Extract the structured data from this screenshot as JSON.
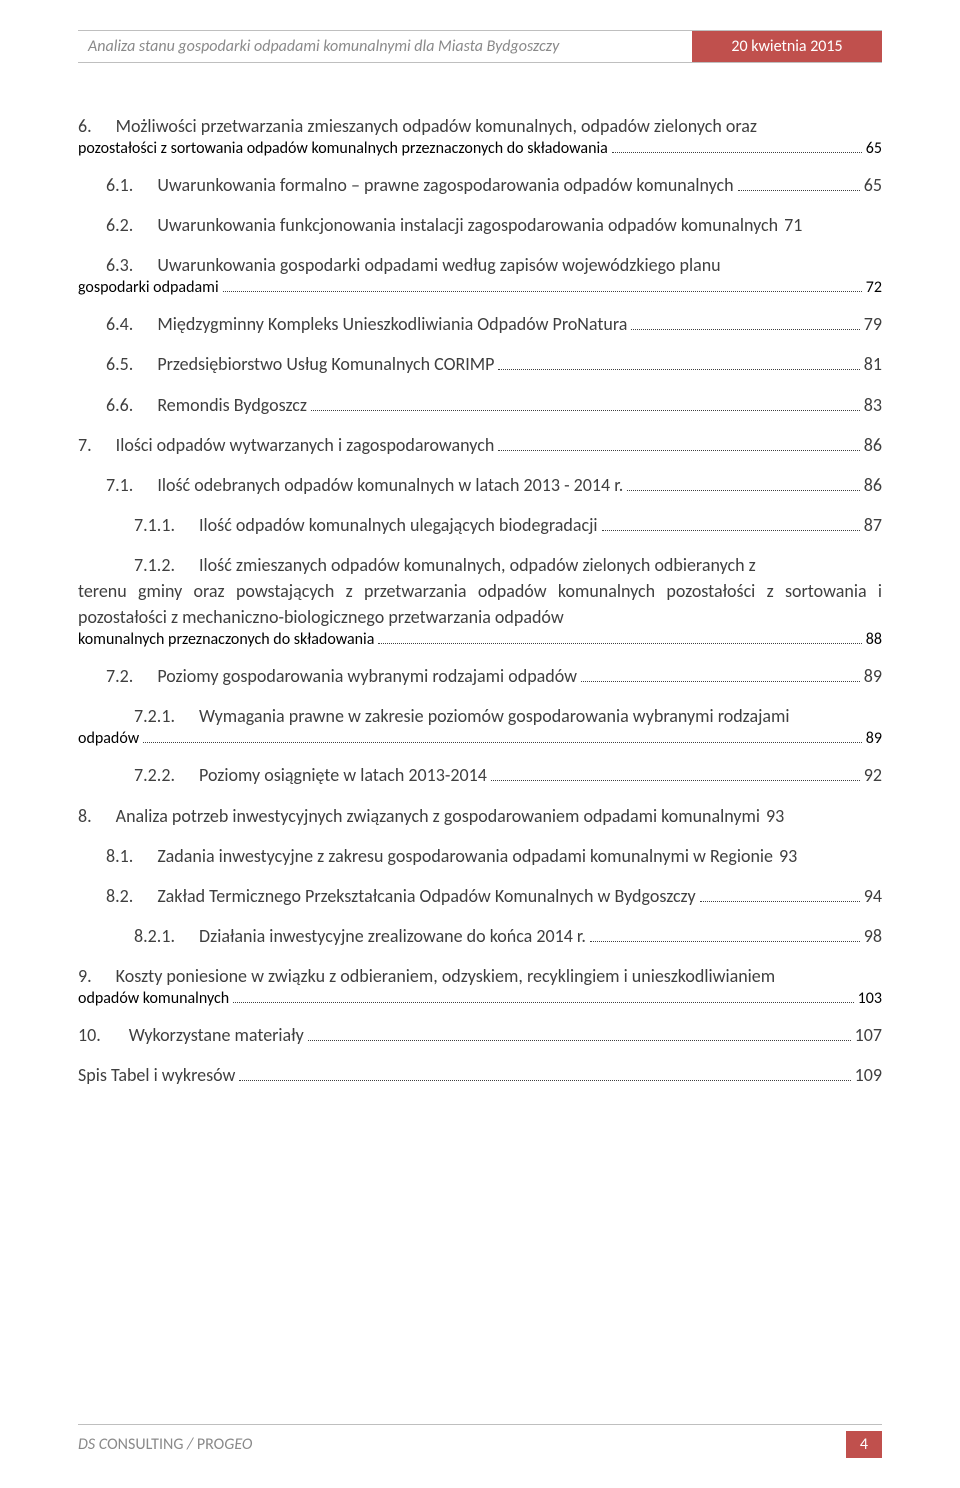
{
  "header": {
    "title": "Analiza stanu gospodarki odpadami komunalnymi dla Miasta Bydgoszczy",
    "date": "20 kwietnia 2015"
  },
  "toc": [
    {
      "num": "6.",
      "text_a": "Możliwości przetwarzania zmieszanych odpadów komunalnych, odpadów zielonych oraz",
      "text_b": "pozostałości z sortowania odpadów komunalnych przeznaczonych do składowania",
      "page": "65",
      "indent": 0,
      "wrap": true
    },
    {
      "num": "6.1.",
      "text_b": "Uwarunkowania formalno – prawne zagospodarowania odpadów komunalnych",
      "page": "65",
      "indent": 1,
      "wrap": false
    },
    {
      "num": "6.2.",
      "text_b": "Uwarunkowania funkcjonowania instalacji zagospodarowania odpadów komunalnych",
      "page": "71",
      "indent": 1,
      "wrap": false,
      "nodots": true
    },
    {
      "num": "6.3.",
      "text_a": "Uwarunkowania gospodarki odpadami według zapisów wojewódzkiego planu",
      "text_b": "gospodarki odpadami",
      "page": "72",
      "indent": 1,
      "wrap": true,
      "justify": true
    },
    {
      "num": "6.4.",
      "text_b": "Międzygminny Kompleks Unieszkodliwiania Odpadów ProNatura",
      "page": "79",
      "indent": 1,
      "wrap": false
    },
    {
      "num": "6.5.",
      "text_b": "Przedsiębiorstwo Usług Komunalnych CORIMP",
      "page": "81",
      "indent": 1,
      "wrap": false
    },
    {
      "num": "6.6.",
      "text_b": "Remondis Bydgoszcz",
      "page": "83",
      "indent": 1,
      "wrap": false
    },
    {
      "num": "7.",
      "text_b": "Ilości odpadów wytwarzanych i zagospodarowanych",
      "page": "86",
      "indent": 0,
      "wrap": false
    },
    {
      "num": "7.1.",
      "text_b": "Ilość odebranych odpadów komunalnych w latach 2013 - 2014 r.",
      "page": "86",
      "indent": 1,
      "wrap": false
    },
    {
      "num": "7.1.1.",
      "text_b": "Ilość odpadów komunalnych ulegających biodegradacji",
      "page": "87",
      "indent": 2,
      "wrap": false
    },
    {
      "num": "7.1.2.",
      "text_a": "Ilość zmieszanych odpadów komunalnych, odpadów zielonych odbieranych z",
      "text_mid": "terenu gminy oraz powstających z przetwarzania odpadów komunalnych pozostałości z sortowania i pozostałości z mechaniczno-biologicznego przetwarzania odpadów",
      "text_b": "komunalnych przeznaczonych do składowania",
      "page": "88",
      "indent": 2,
      "wrap": true,
      "justify": true
    },
    {
      "num": "7.2.",
      "text_b": "Poziomy gospodarowania wybranymi rodzajami odpadów",
      "page": "89",
      "indent": 1,
      "wrap": false
    },
    {
      "num": "7.2.1.",
      "text_a": "Wymagania prawne w zakresie poziomów gospodarowania wybranymi rodzajami",
      "text_b": "odpadów",
      "page": "89",
      "indent": 2,
      "wrap": true
    },
    {
      "num": "7.2.2.",
      "text_b": "Poziomy osiągnięte w latach 2013-2014",
      "page": "92",
      "indent": 2,
      "wrap": false
    },
    {
      "num": "8.",
      "text_b": "Analiza potrzeb inwestycyjnych związanych z gospodarowaniem odpadami komunalnymi",
      "page": "93",
      "indent": 0,
      "wrap": false,
      "nodots": true
    },
    {
      "num": "8.1.",
      "text_b": "Zadania inwestycyjne z zakresu gospodarowania odpadami komunalnymi w Regionie",
      "page": "93",
      "indent": 1,
      "wrap": false,
      "nodots": true
    },
    {
      "num": "8.2.",
      "text_b": "Zakład Termicznego Przekształcania Odpadów Komunalnych w Bydgoszczy",
      "page": "94",
      "indent": 1,
      "wrap": false
    },
    {
      "num": "8.2.1.",
      "text_b": "Działania inwestycyjne zrealizowane do końca 2014 r.",
      "page": "98",
      "indent": 2,
      "wrap": false
    },
    {
      "num": "9.",
      "text_a": "Koszty poniesione w związku z odbieraniem, odzyskiem, recyklingiem i unieszkodliwianiem",
      "text_b": "odpadów komunalnych",
      "page": "103",
      "indent": 0,
      "wrap": true
    },
    {
      "num": "10.",
      "text_b": "Wykorzystane materiały",
      "page": "107",
      "indent": 0,
      "wrap": false,
      "pad": true
    },
    {
      "num": "",
      "text_b": "Spis Tabel i wykresów",
      "page": "109",
      "indent": 0,
      "wrap": false
    }
  ],
  "footer": {
    "text_a": "DS C",
    "text_b": "ONSULTING",
    "text_c": " / ",
    "text_d": "PRO",
    "text_e": "GEO",
    "page_number": "4"
  }
}
